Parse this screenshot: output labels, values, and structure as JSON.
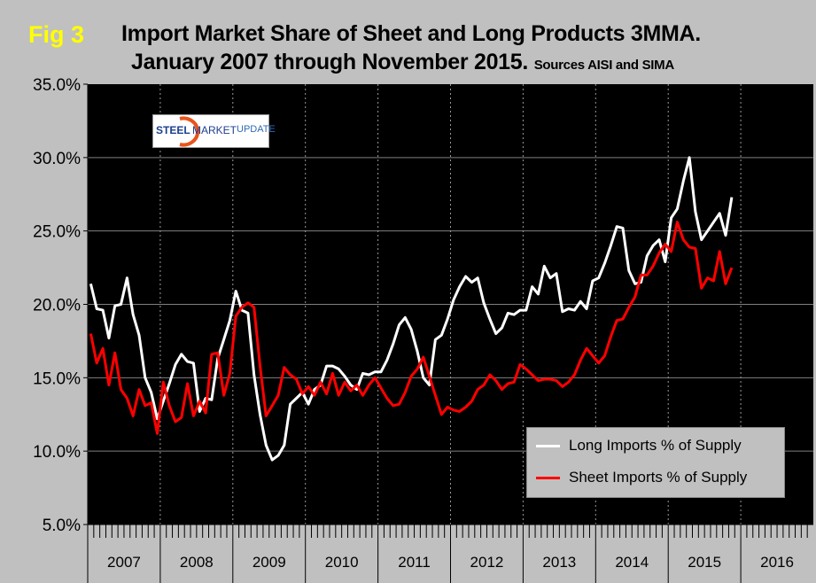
{
  "header": {
    "fig_label": "Fig 3",
    "title_line1": "Import Market Share of Sheet and Long Products 3MMA.",
    "title_line2": "January 2007 through November 2015.",
    "sources": "Sources AISI and SIMA"
  },
  "logo": {
    "text_steel": "STEEL",
    "text_market": "MARKET",
    "text_update": "UPDATE"
  },
  "chart_data": {
    "type": "line",
    "title": "Import Market Share of Sheet and Long Products 3MMA. January 2007 through November 2015.",
    "x_start": "2007-01",
    "x_end": "2015-11",
    "x_frequency": "monthly",
    "x_tick_labels": [
      "2007",
      "2008",
      "2009",
      "2010",
      "2011",
      "2012",
      "2013",
      "2014",
      "2015",
      "2016"
    ],
    "y_tick_labels": [
      "35.0%",
      "30.0%",
      "25.0%",
      "20.0%",
      "15.0%",
      "10.0%",
      "5.0%"
    ],
    "ylim": [
      5,
      35
    ],
    "grid": "horizontal solid, vertical dotted at years",
    "legend_position": "bottom-right",
    "background": "#000000",
    "series": [
      {
        "name": "Long Imports % of Supply",
        "color": "#ffffff",
        "values": [
          21.4,
          19.7,
          19.6,
          17.7,
          19.9,
          20.0,
          21.8,
          19.3,
          17.9,
          15.0,
          14.0,
          12.2,
          13.4,
          14.6,
          15.9,
          16.6,
          16.1,
          16.0,
          12.7,
          13.6,
          13.5,
          16.3,
          17.6,
          18.9,
          20.9,
          19.6,
          19.4,
          15.2,
          12.5,
          10.4,
          9.4,
          9.7,
          10.4,
          13.2,
          13.6,
          14.0,
          13.2,
          14.2,
          14.5,
          15.8,
          15.8,
          15.6,
          15.1,
          14.5,
          14.2,
          15.3,
          15.2,
          15.4,
          15.4,
          16.2,
          17.3,
          18.6,
          19.1,
          18.3,
          16.8,
          15.0,
          14.5,
          17.6,
          17.9,
          19.0,
          20.3,
          21.2,
          21.9,
          21.5,
          21.8,
          20.1,
          19.0,
          18.0,
          18.4,
          19.4,
          19.3,
          19.6,
          19.6,
          21.2,
          20.7,
          22.6,
          21.8,
          22.1,
          19.5,
          19.7,
          19.6,
          20.2,
          19.7,
          21.6,
          21.8,
          22.8,
          24.0,
          25.3,
          25.2,
          22.3,
          21.4,
          21.5,
          23.3,
          24.0,
          24.4,
          22.9,
          25.9,
          26.5,
          28.4,
          30.0,
          26.3,
          24.4,
          25.0,
          25.6,
          26.2,
          24.7,
          27.3
        ]
      },
      {
        "name": "Sheet Imports % of Supply",
        "color": "#ff0000",
        "values": [
          18.0,
          16.0,
          17.0,
          14.5,
          16.7,
          14.2,
          13.6,
          12.4,
          14.2,
          13.1,
          13.3,
          11.2,
          14.7,
          13.1,
          12.0,
          12.3,
          14.6,
          12.4,
          13.4,
          12.6,
          16.6,
          16.7,
          13.8,
          15.3,
          19.2,
          19.8,
          20.1,
          19.8,
          15.8,
          12.4,
          13.1,
          13.8,
          15.7,
          15.2,
          14.9,
          13.9,
          14.4,
          13.8,
          14.7,
          13.9,
          15.3,
          13.8,
          14.7,
          14.1,
          14.5,
          13.8,
          14.5,
          15.0,
          14.3,
          13.6,
          13.1,
          13.2,
          14.0,
          15.1,
          15.6,
          16.4,
          15.1,
          13.8,
          12.5,
          13.0,
          12.8,
          12.7,
          13.0,
          13.4,
          14.2,
          14.5,
          15.2,
          14.8,
          14.2,
          14.6,
          14.7,
          15.9,
          15.6,
          15.2,
          14.8,
          14.9,
          14.9,
          14.8,
          14.4,
          14.7,
          15.2,
          16.2,
          17.0,
          16.5,
          16.0,
          16.5,
          17.8,
          18.9,
          19.0,
          19.8,
          20.5,
          22.0,
          22.0,
          22.6,
          23.5,
          24.1,
          23.6,
          25.6,
          24.4,
          23.9,
          23.8,
          21.1,
          21.8,
          21.6,
          23.6,
          21.4,
          22.5
        ]
      }
    ]
  }
}
